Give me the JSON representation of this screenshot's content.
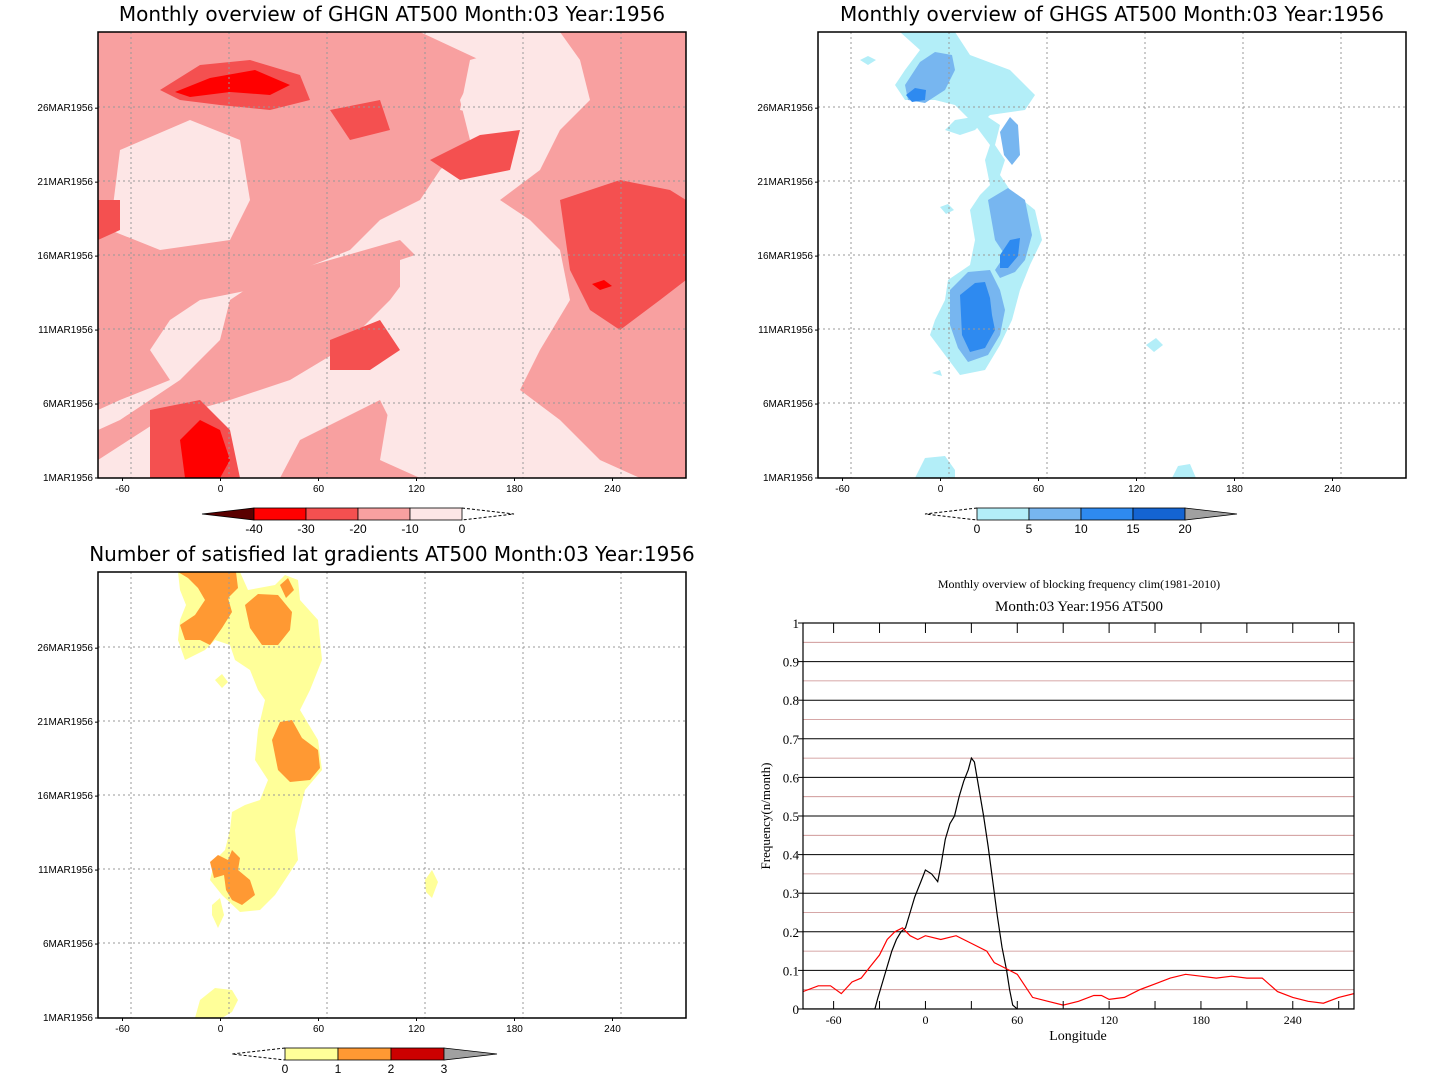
{
  "panels": {
    "ghgn": {
      "title": "Monthly overview of GHGN AT500 Month:03 Year:1956",
      "colorbar": {
        "ticks": [
          "-40",
          "-30",
          "-20",
          "-10",
          "0"
        ],
        "colors": [
          "#5a0000",
          "#ff0000",
          "#f45050",
          "#f8a0a0",
          "#fde6e6"
        ]
      },
      "background_color": "#fde6e6"
    },
    "ghgs": {
      "title": "Monthly overview of GHGS AT500 Month:03 Year:1956",
      "colorbar": {
        "ticks": [
          "0",
          "5",
          "10",
          "15",
          "20"
        ],
        "colors": [
          "#b3eef8",
          "#77b6f0",
          "#2e8af0",
          "#1464d2",
          "#a0a0a0"
        ]
      }
    },
    "lat": {
      "title": "Number of satisfied lat gradients AT500 Month:03 Year:1956",
      "colorbar": {
        "ticks": [
          "0",
          "1",
          "2",
          "3"
        ],
        "colors": [
          "#ffff99",
          "#ff9933",
          "#cc0000",
          "#a0a0a0"
        ]
      }
    },
    "freq": {
      "title": "Monthly overview of blocking frequency clim(1981-2010)",
      "subtitle": "Month:03 Year:1956  AT500"
    }
  },
  "hovmoller_axes": {
    "x_ticks": [
      "-60",
      "0",
      "60",
      "120",
      "180",
      "240"
    ],
    "y_ticks": [
      "1MAR1956",
      "6MAR1956",
      "11MAR1956",
      "16MAR1956",
      "21MAR1956",
      "26MAR1956"
    ]
  },
  "chart_data": [
    {
      "type": "heatmap",
      "title": "Monthly overview of GHGN AT500 Month:03 Year:1956",
      "x_range": [
        -75,
        285
      ],
      "y_range": [
        "1MAR1956",
        "31MAR1956"
      ],
      "levels": [
        -40,
        -30,
        -20,
        -10,
        0
      ]
    },
    {
      "type": "heatmap",
      "title": "Monthly overview of GHGS AT500 Month:03 Year:1956",
      "x_range": [
        -75,
        285
      ],
      "y_range": [
        "1MAR1956",
        "31MAR1956"
      ],
      "levels": [
        0,
        5,
        10,
        15,
        20
      ]
    },
    {
      "type": "heatmap",
      "title": "Number of satisfied lat gradients AT500 Month:03 Year:1956",
      "x_range": [
        -75,
        285
      ],
      "y_range": [
        "1MAR1956",
        "31MAR1956"
      ],
      "levels": [
        0,
        1,
        2,
        3
      ]
    },
    {
      "type": "line",
      "title": "Monthly overview of blocking frequency clim(1981-2010)",
      "subtitle": "Month:03 Year:1956  AT500",
      "xlabel": "Longitude",
      "ylabel": "Frequency(n/month)",
      "xlim": [
        -80,
        280
      ],
      "ylim": [
        0,
        1
      ],
      "x_ticks": [
        "-60",
        "0",
        "60",
        "120",
        "180",
        "240"
      ],
      "y_ticks": [
        "0",
        "0.1",
        "0.2",
        "0.3",
        "0.4",
        "0.5",
        "0.6",
        "0.7",
        "0.8",
        "0.9",
        "1"
      ],
      "series": [
        {
          "color": "#000000",
          "x": [
            -80,
            -33,
            -31,
            -28,
            -25,
            -22,
            -19,
            -16,
            -13,
            -10,
            -7,
            -5,
            -3,
            0,
            4,
            8,
            10,
            13,
            16,
            19,
            22,
            25,
            28,
            30,
            32,
            35,
            38,
            41,
            44,
            47,
            50,
            53,
            55,
            57,
            60,
            280
          ],
          "values": [
            0,
            0,
            0.03,
            0.07,
            0.11,
            0.15,
            0.18,
            0.2,
            0.21,
            0.25,
            0.29,
            0.31,
            0.33,
            0.36,
            0.35,
            0.33,
            0.37,
            0.44,
            0.48,
            0.5,
            0.55,
            0.59,
            0.62,
            0.65,
            0.64,
            0.57,
            0.5,
            0.42,
            0.33,
            0.24,
            0.16,
            0.1,
            0.05,
            0.01,
            0,
            0
          ]
        },
        {
          "color": "#ff0000",
          "x": [
            -80,
            -70,
            -62,
            -55,
            -48,
            -42,
            -36,
            -30,
            -25,
            -20,
            -15,
            -10,
            -5,
            0,
            10,
            20,
            30,
            40,
            45,
            50,
            55,
            60,
            70,
            80,
            90,
            100,
            110,
            115,
            120,
            130,
            140,
            150,
            160,
            170,
            180,
            190,
            200,
            210,
            220,
            230,
            240,
            250,
            260,
            270,
            280
          ],
          "values": [
            0.045,
            0.06,
            0.06,
            0.04,
            0.07,
            0.08,
            0.11,
            0.14,
            0.18,
            0.2,
            0.21,
            0.19,
            0.18,
            0.19,
            0.18,
            0.19,
            0.17,
            0.15,
            0.12,
            0.11,
            0.1,
            0.09,
            0.03,
            0.02,
            0.01,
            0.02,
            0.035,
            0.035,
            0.025,
            0.03,
            0.05,
            0.065,
            0.08,
            0.09,
            0.085,
            0.08,
            0.085,
            0.08,
            0.08,
            0.045,
            0.03,
            0.02,
            0.015,
            0.03,
            0.04
          ]
        }
      ]
    }
  ]
}
